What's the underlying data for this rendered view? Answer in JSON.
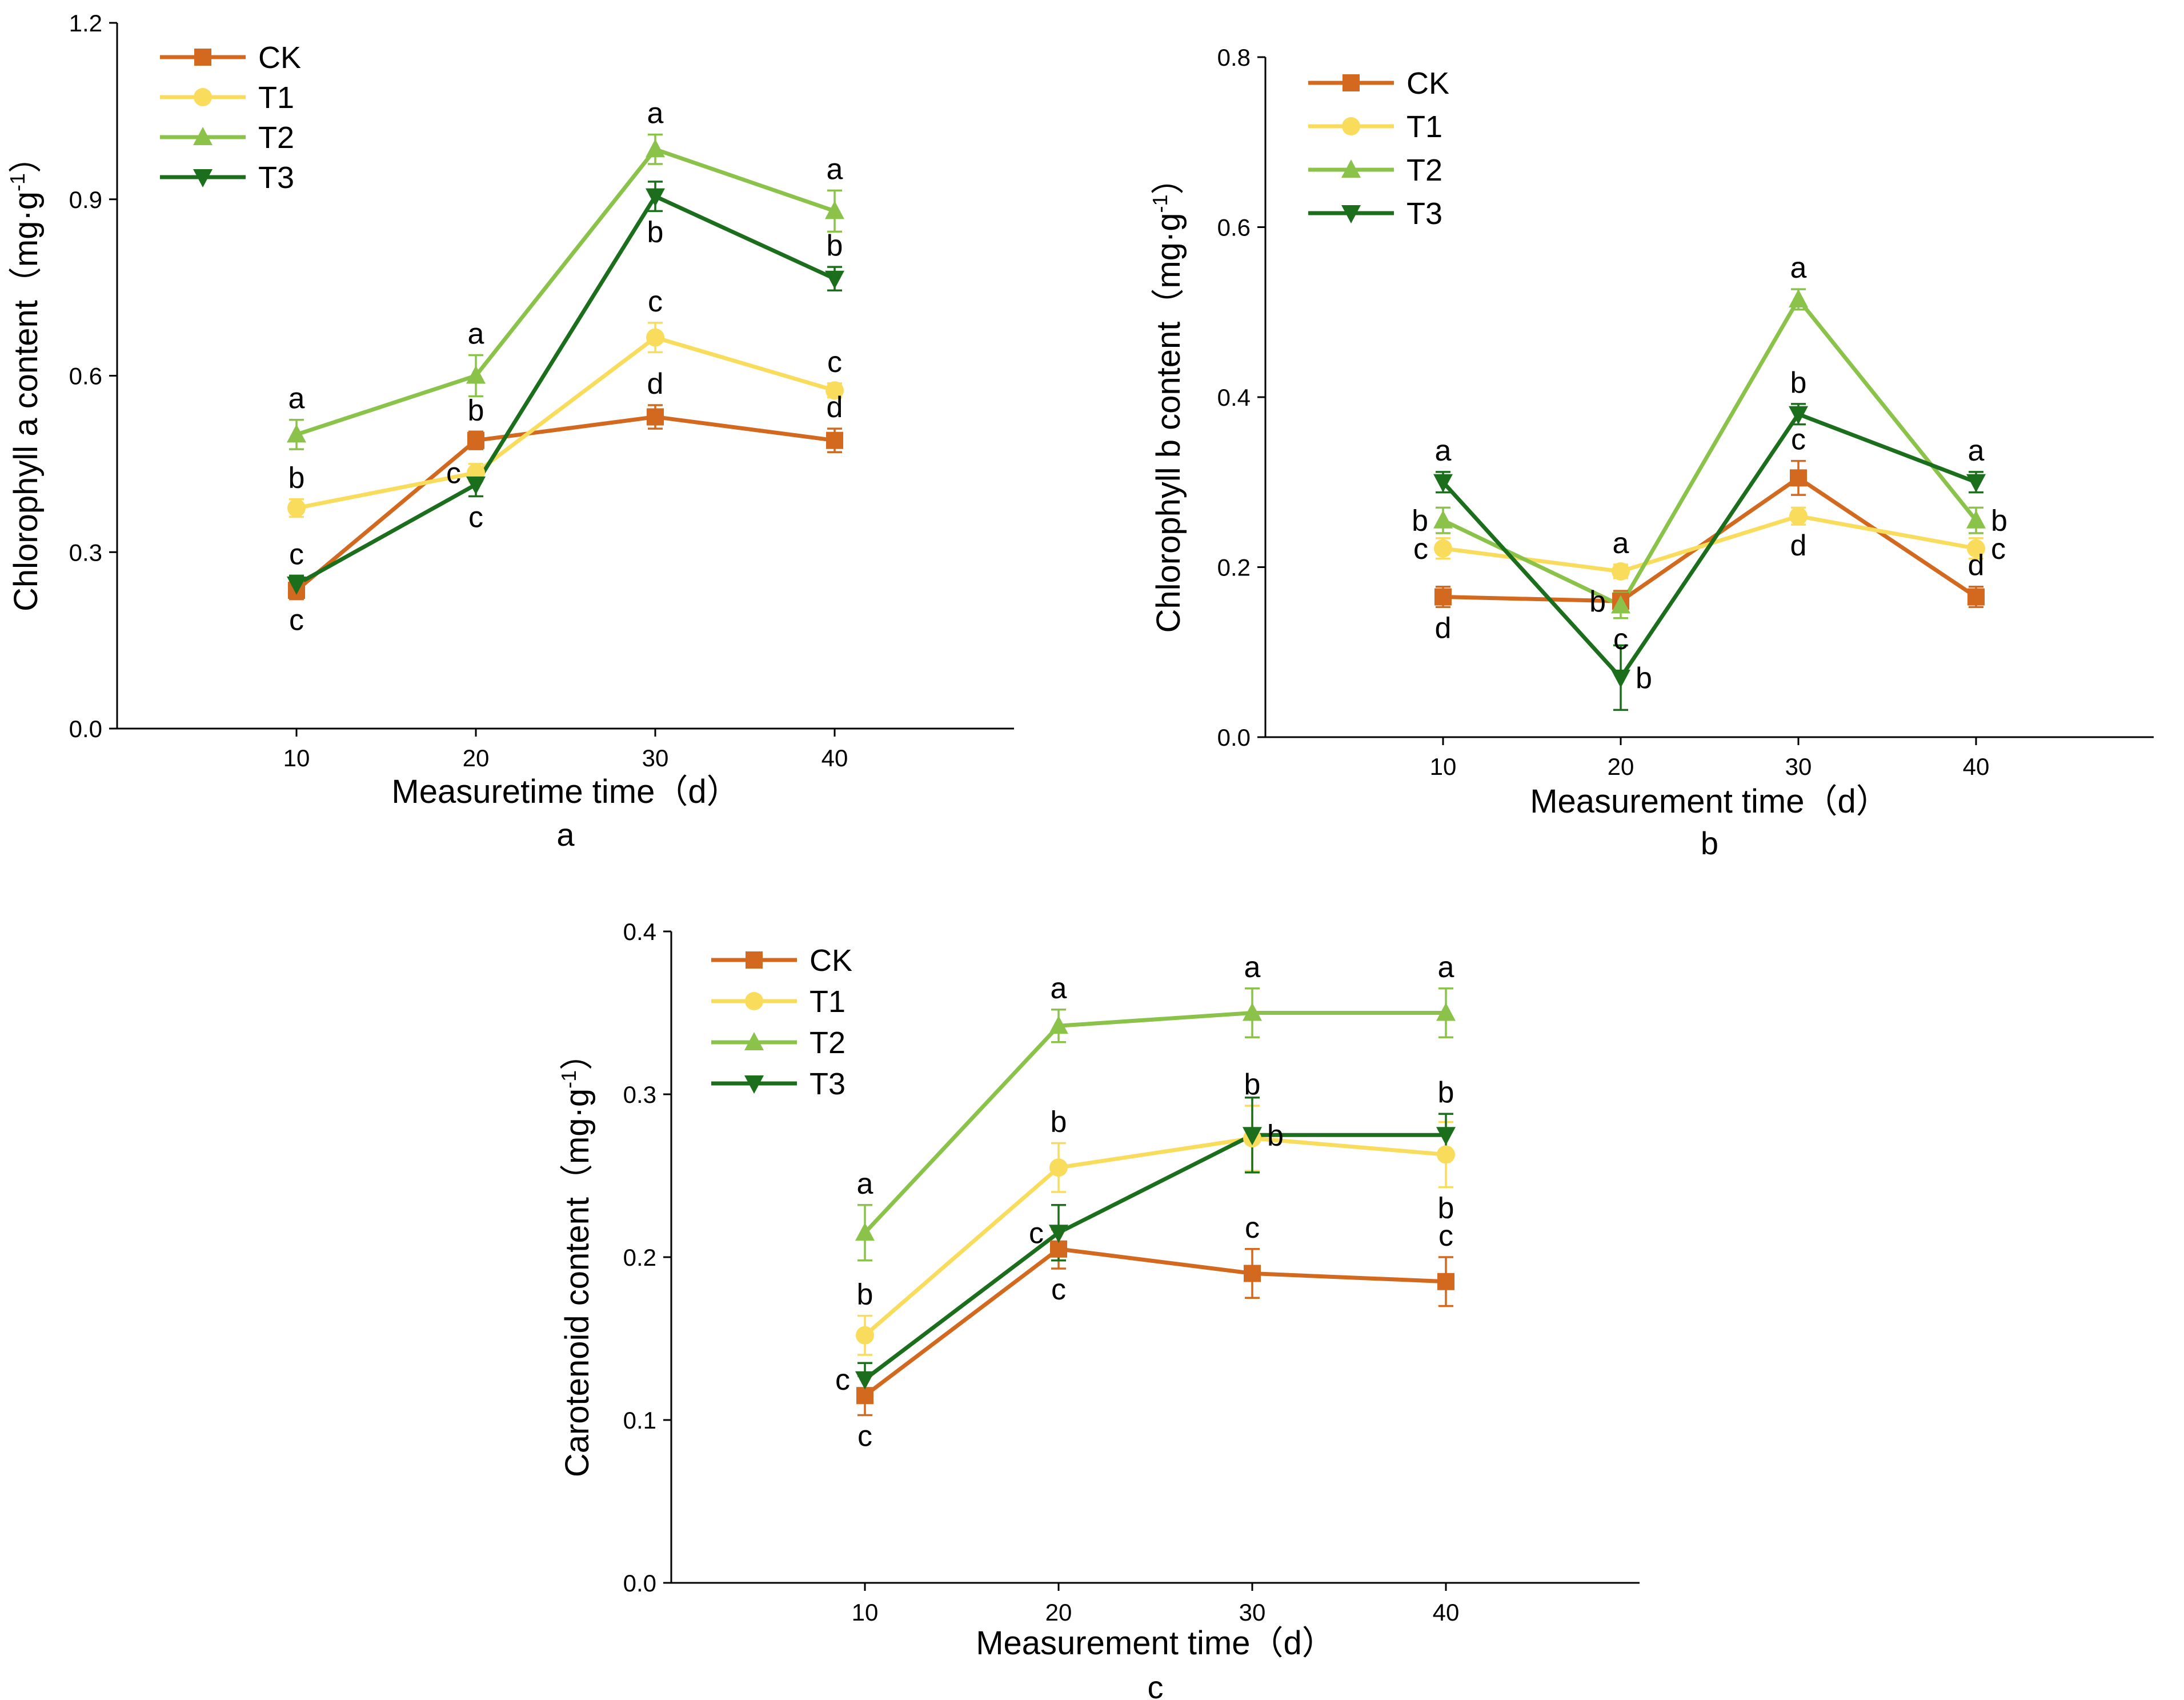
{
  "series_styles": [
    {
      "name": "CK",
      "color": "#D2691E",
      "marker": "square"
    },
    {
      "name": "T1",
      "color": "#F9DC5C",
      "marker": "circle"
    },
    {
      "name": "T2",
      "color": "#8BC34A",
      "marker": "triangle-up"
    },
    {
      "name": "T3",
      "color": "#1B6E1B",
      "marker": "triangle-down"
    }
  ],
  "chart_data": [
    {
      "type": "line",
      "panel_label": "a",
      "xlabel": "Measuretime time（d）",
      "ylabel": "Chlorophyll a content（mg·g",
      "ylabel_sup": "-1",
      "ylabel_close": "）",
      "x": [
        10,
        20,
        30,
        40
      ],
      "xticks": [
        "10",
        "20",
        "30",
        "40"
      ],
      "xlim": [
        0,
        50
      ],
      "ylim": [
        0,
        1.2
      ],
      "yticks": [
        "0.0",
        "0.3",
        "0.6",
        "0.9",
        "1.2"
      ],
      "legend_position": "top-left",
      "series": [
        {
          "name": "CK",
          "values": [
            0.235,
            0.49,
            0.53,
            0.49
          ],
          "errors": [
            0.015,
            0.015,
            0.02,
            0.02
          ],
          "letters": [
            "c",
            "b",
            "d",
            "d"
          ],
          "letter_pos": [
            "below",
            "above",
            "above",
            "above"
          ]
        },
        {
          "name": "T1",
          "values": [
            0.375,
            0.435,
            0.665,
            0.575
          ],
          "errors": [
            0.015,
            0.015,
            0.025,
            0.012
          ],
          "letters": [
            "b",
            "c",
            "c",
            "c"
          ],
          "letter_pos": [
            "above",
            "left",
            "above",
            "above"
          ]
        },
        {
          "name": "T2",
          "values": [
            0.5,
            0.6,
            0.985,
            0.88
          ],
          "errors": [
            0.025,
            0.035,
            0.025,
            0.035
          ],
          "letters": [
            "a",
            "a",
            "a",
            "a"
          ],
          "letter_pos": [
            "above",
            "above",
            "above",
            "above"
          ]
        },
        {
          "name": "T3",
          "values": [
            0.245,
            0.415,
            0.905,
            0.765
          ],
          "errors": [
            0.015,
            0.02,
            0.025,
            0.02
          ],
          "letters": [
            "c",
            "c",
            "b",
            "b"
          ],
          "letter_pos": [
            "above",
            "below",
            "below",
            "above"
          ]
        }
      ]
    },
    {
      "type": "line",
      "panel_label": "b",
      "xlabel": "Measurement time（d）",
      "ylabel": "Chlorophyll b content（mg·g",
      "ylabel_sup": "-1",
      "ylabel_close": "）",
      "x": [
        10,
        20,
        30,
        40
      ],
      "xticks": [
        "10",
        "20",
        "30",
        "40"
      ],
      "xlim": [
        0,
        50
      ],
      "ylim": [
        0,
        0.8
      ],
      "yticks": [
        "0.0",
        "0.2",
        "0.4",
        "0.6",
        "0.8"
      ],
      "legend_position": "top-left",
      "series": [
        {
          "name": "CK",
          "values": [
            0.165,
            0.16,
            0.305,
            0.165
          ],
          "errors": [
            0.012,
            0.012,
            0.02,
            0.012
          ],
          "letters": [
            "d",
            "b",
            "c",
            "d"
          ],
          "letter_pos": [
            "below",
            "left",
            "above",
            "above"
          ]
        },
        {
          "name": "T1",
          "values": [
            0.222,
            0.195,
            0.26,
            0.222
          ],
          "errors": [
            0.012,
            0.008,
            0.01,
            0.012
          ],
          "letters": [
            "c",
            "a",
            "d",
            "c"
          ],
          "letter_pos": [
            "left",
            "above",
            "below",
            "right"
          ]
        },
        {
          "name": "T2",
          "values": [
            0.255,
            0.155,
            0.515,
            0.255
          ],
          "errors": [
            0.015,
            0.015,
            0.012,
            0.015
          ],
          "letters": [
            "b",
            "c",
            "a",
            "b"
          ],
          "letter_pos": [
            "left",
            "below",
            "above",
            "right"
          ]
        },
        {
          "name": "T3",
          "values": [
            0.3,
            0.07,
            0.38,
            0.3
          ],
          "errors": [
            0.012,
            0.038,
            0.012,
            0.012
          ],
          "letters": [
            "a",
            "b",
            "b",
            "a"
          ],
          "letter_pos": [
            "above",
            "right",
            "above",
            "above"
          ]
        }
      ]
    },
    {
      "type": "line",
      "panel_label": "c",
      "xlabel": "Measurement time（d）",
      "ylabel": "Carotenoid content（mg·g",
      "ylabel_sup": "-1",
      "ylabel_close": "）",
      "x": [
        10,
        20,
        30,
        40
      ],
      "xticks": [
        "10",
        "20",
        "30",
        "40"
      ],
      "xlim": [
        0,
        50
      ],
      "ylim": [
        0,
        0.4
      ],
      "yticks": [
        "0.0",
        "0.1",
        "0.2",
        "0.3",
        "0.4"
      ],
      "legend_position": "top-left",
      "series": [
        {
          "name": "CK",
          "values": [
            0.115,
            0.205,
            0.19,
            0.185
          ],
          "errors": [
            0.012,
            0.012,
            0.015,
            0.015
          ],
          "letters": [
            "c",
            "c",
            "c",
            "c"
          ],
          "letter_pos": [
            "below",
            "below",
            "above",
            "above"
          ]
        },
        {
          "name": "T1",
          "values": [
            0.152,
            0.255,
            0.273,
            0.263
          ],
          "errors": [
            0.012,
            0.015,
            0.02,
            0.02
          ],
          "letters": [
            "b",
            "b",
            "b",
            "b"
          ],
          "letter_pos": [
            "above",
            "above",
            "above",
            "below"
          ]
        },
        {
          "name": "T2",
          "values": [
            0.215,
            0.342,
            0.35,
            0.35
          ],
          "errors": [
            0.017,
            0.01,
            0.015,
            0.015
          ],
          "letters": [
            "a",
            "a",
            "a",
            "a"
          ],
          "letter_pos": [
            "above",
            "above",
            "above",
            "above"
          ]
        },
        {
          "name": "T3",
          "values": [
            0.125,
            0.215,
            0.275,
            0.275
          ],
          "errors": [
            0.01,
            0.017,
            0.023,
            0.013
          ],
          "letters": [
            "c",
            "c",
            "b",
            "b"
          ],
          "letter_pos": [
            "left",
            "left",
            "right",
            "above"
          ]
        }
      ]
    }
  ]
}
